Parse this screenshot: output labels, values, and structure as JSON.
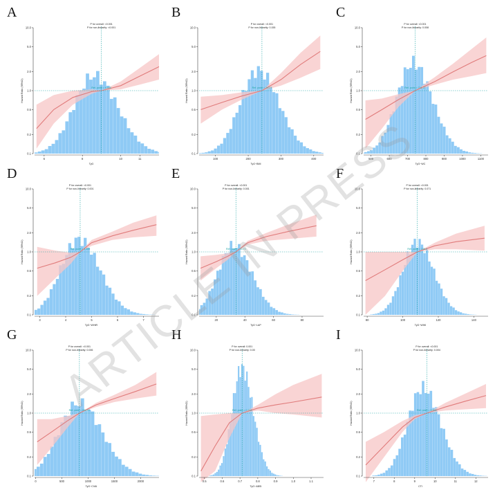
{
  "watermark": "ARTICLE IN PRESS",
  "colors": {
    "ci": "#f7c5c5",
    "line": "#e07b7b",
    "hist": "#8fcaf5",
    "ref": "#1aa3a3"
  },
  "chart_data": [
    {
      "type": "line",
      "letter": "A",
      "p_overall": "P for overall: <0.001",
      "p_nonlinear": "P for non-linearity: <0.001",
      "ref_label": "Ref. point = 8.990",
      "ylabel": "Hazard Ratio (95%CI)",
      "xlabel": "TyG",
      "x_ticks": [
        {
          "v": 6,
          "label": "6"
        },
        {
          "v": 8,
          "label": "8"
        },
        {
          "v": 10,
          "label": "10"
        },
        {
          "v": 11,
          "label": "11"
        }
      ],
      "y_ticks": [
        "10.0",
        "5.0",
        "2.0",
        "1.0",
        "0.5",
        "0.2",
        "0.1"
      ],
      "xlim": [
        5.5,
        12
      ],
      "ref_x": 8.99,
      "curve_x": [
        5.6,
        6.5,
        7.5,
        8.5,
        9.0,
        10,
        11,
        12
      ],
      "hr": [
        0.25,
        0.5,
        0.78,
        0.97,
        1.0,
        1.2,
        1.7,
        2.4
      ],
      "lower": [
        0.12,
        0.3,
        0.6,
        0.9,
        1.0,
        1.05,
        1.25,
        1.5
      ],
      "upper": [
        0.6,
        0.85,
        1.0,
        1.05,
        1.0,
        1.4,
        2.3,
        3.8
      ],
      "hist": {
        "center": 8.6,
        "sd": 1.05,
        "peak": 0.62
      }
    },
    {
      "type": "line",
      "letter": "B",
      "p_overall": "P for overall: <0.001",
      "p_nonlinear": "P for non-linearity: 0.155",
      "ref_label": "Ref. point = 241.9",
      "ylabel": "Hazard Ratio (95%CI)",
      "xlabel": "TyG−BMI",
      "x_ticks": [
        {
          "v": 100,
          "label": "100"
        },
        {
          "v": 200,
          "label": "200"
        },
        {
          "v": 300,
          "label": "300"
        },
        {
          "v": 400,
          "label": "400"
        }
      ],
      "y_ticks": [
        "10.0",
        "5.0",
        "2.0",
        "1.0",
        "0.5",
        "0.2",
        "0.1"
      ],
      "xlim": [
        50,
        430
      ],
      "ref_x": 241.9,
      "curve_x": [
        55,
        120,
        180,
        242,
        300,
        360,
        420
      ],
      "hr": [
        0.5,
        0.65,
        0.82,
        1.0,
        1.5,
        2.6,
        4.2
      ],
      "lower": [
        0.3,
        0.5,
        0.72,
        1.0,
        1.2,
        1.6,
        2.2
      ],
      "upper": [
        0.8,
        0.85,
        0.94,
        1.0,
        1.9,
        4.0,
        7.5
      ],
      "hist": {
        "center": 230,
        "sd": 55,
        "peak": 0.66
      }
    },
    {
      "type": "line",
      "letter": "C",
      "p_overall": "P for overall: <0.001",
      "p_nonlinear": "P for non-linearity: 0.008",
      "ref_label": "Ref. point = 741.27",
      "ylabel": "Hazard Ratio (95%CI)",
      "xlabel": "TyG−WC",
      "x_ticks": [
        {
          "v": 500,
          "label": "500"
        },
        {
          "v": 600,
          "label": "600"
        },
        {
          "v": 700,
          "label": "700"
        },
        {
          "v": 800,
          "label": "800"
        },
        {
          "v": 900,
          "label": "900"
        },
        {
          "v": 1000,
          "label": "1000"
        },
        {
          "v": 1100,
          "label": "1100"
        }
      ],
      "y_ticks": [
        "10.0",
        "5.0",
        "2.0",
        "1.0",
        "0.5",
        "0.2",
        "0.1"
      ],
      "xlim": [
        460,
        1140
      ],
      "ref_x": 741.27,
      "curve_x": [
        470,
        560,
        650,
        741,
        850,
        950,
        1050,
        1130
      ],
      "hr": [
        0.35,
        0.5,
        0.72,
        1.0,
        1.4,
        2.0,
        2.8,
        3.6
      ],
      "lower": [
        0.12,
        0.25,
        0.55,
        1.0,
        1.25,
        1.5,
        1.7,
        1.9
      ],
      "upper": [
        0.7,
        0.75,
        0.88,
        1.0,
        1.65,
        2.7,
        4.6,
        7.0
      ],
      "hist": {
        "center": 730,
        "sd": 90,
        "peak": 0.72
      }
    },
    {
      "type": "line",
      "letter": "D",
      "p_overall": "P for overall: <0.001",
      "p_nonlinear": "P for non-linearity: 0.001",
      "ref_label": "Ref. point = 4.559",
      "ylabel": "Hazard Ratio (95%CI)",
      "xlabel": "TyG−WHtR",
      "x_ticks": [
        {
          "v": 3,
          "label": "3"
        },
        {
          "v": 4,
          "label": "4"
        },
        {
          "v": 5,
          "label": "5"
        },
        {
          "v": 6,
          "label": "6"
        },
        {
          "v": 7,
          "label": "7"
        }
      ],
      "y_ticks": [
        "10.0",
        "5.0",
        "2.0",
        "1.0",
        "0.5",
        "0.2",
        "0.1"
      ],
      "xlim": [
        2.8,
        7.6
      ],
      "ref_x": 4.559,
      "curve_x": [
        2.9,
        3.6,
        4.2,
        4.56,
        5.0,
        5.8,
        6.6,
        7.5
      ],
      "hr": [
        0.55,
        0.67,
        0.82,
        1.0,
        1.4,
        1.8,
        2.2,
        2.7
      ],
      "lower": [
        0.2,
        0.38,
        0.65,
        1.0,
        1.25,
        1.55,
        1.7,
        1.8
      ],
      "upper": [
        1.2,
        1.05,
        0.97,
        1.0,
        1.55,
        2.1,
        2.9,
        3.8
      ],
      "hist": {
        "center": 4.5,
        "sd": 0.7,
        "peak": 0.6
      }
    },
    {
      "type": "line",
      "letter": "E",
      "p_overall": "P for overall: <0.001",
      "p_nonlinear": "P for non-linearity: 0.001",
      "ref_label": "Ref. point = 33.73",
      "ylabel": "Hazard Ratio (95%CI)",
      "xlabel": "TyG−LAP",
      "x_ticks": [
        {
          "v": 20,
          "label": "20"
        },
        {
          "v": 40,
          "label": "40"
        },
        {
          "v": 60,
          "label": "60"
        },
        {
          "v": 80,
          "label": "80"
        }
      ],
      "y_ticks": [
        "10.0",
        "5.0",
        "2.0",
        "1.0",
        "0.5",
        "0.2",
        "0.1"
      ],
      "xlim": [
        8,
        95
      ],
      "ref_x": 33.73,
      "curve_x": [
        9,
        20,
        28,
        33.7,
        42,
        55,
        70,
        90
      ],
      "hr": [
        0.55,
        0.7,
        0.85,
        1.0,
        1.4,
        1.75,
        2.1,
        2.6
      ],
      "lower": [
        0.35,
        0.55,
        0.75,
        1.0,
        1.3,
        1.5,
        1.6,
        1.75
      ],
      "upper": [
        0.85,
        0.9,
        0.95,
        1.0,
        1.5,
        2.0,
        2.7,
        3.9
      ],
      "hist": {
        "center": 32,
        "sd": 11,
        "peak": 0.55
      }
    },
    {
      "type": "line",
      "letter": "F",
      "p_overall": "P for overall: <0.001",
      "p_nonlinear": "P for non-linearity: 0.071",
      "ref_label": "Ref. point = 108.2",
      "ylabel": "Hazard Ratio (95%CI)",
      "xlabel": "TyG−WWI",
      "x_ticks": [
        {
          "v": 80,
          "label": "80"
        },
        {
          "v": 100,
          "label": "100"
        },
        {
          "v": 120,
          "label": "120"
        },
        {
          "v": 140,
          "label": "140"
        }
      ],
      "y_ticks": [
        "10.0",
        "5.0",
        "2.0",
        "1.0",
        "0.5",
        "0.2",
        "0.1"
      ],
      "xlim": [
        78,
        148
      ],
      "ref_x": 108.2,
      "curve_x": [
        79,
        90,
        100,
        108.2,
        118,
        130,
        146
      ],
      "hr": [
        0.35,
        0.52,
        0.75,
        1.0,
        1.25,
        1.45,
        1.65
      ],
      "lower": [
        0.1,
        0.2,
        0.5,
        1.0,
        1.1,
        1.1,
        1.05
      ],
      "upper": [
        1.0,
        1.0,
        1.0,
        1.0,
        1.4,
        1.95,
        2.6
      ],
      "hist": {
        "center": 108,
        "sd": 8,
        "peak": 0.58
      }
    },
    {
      "type": "line",
      "letter": "G",
      "p_overall": "P for overall: <0.001",
      "p_nonlinear": "P for non-linearity: 0.006",
      "ref_label": "Ref. point = 834.03",
      "ylabel": "Hazard Ratio (95%CI)",
      "xlabel": "TyG−CVAI",
      "x_ticks": [
        {
          "v": 0,
          "label": "0"
        },
        {
          "v": 500,
          "label": "500"
        },
        {
          "v": 1000,
          "label": "1000"
        },
        {
          "v": 1500,
          "label": "1500"
        },
        {
          "v": 2000,
          "label": "2000"
        }
      ],
      "y_ticks": [
        "10.0",
        "5.0",
        "2.0",
        "1.0",
        "0.5",
        "0.2",
        "0.1"
      ],
      "xlim": [
        -20,
        2350
      ],
      "ref_x": 834.03,
      "curve_x": [
        30,
        300,
        600,
        834,
        1150,
        1500,
        1900,
        2300
      ],
      "hr": [
        0.35,
        0.5,
        0.75,
        1.0,
        1.35,
        1.7,
        2.2,
        2.9
      ],
      "lower": [
        0.15,
        0.28,
        0.58,
        1.0,
        1.25,
        1.5,
        1.7,
        1.9
      ],
      "upper": [
        0.8,
        0.8,
        0.9,
        1.0,
        1.45,
        1.95,
        2.8,
        4.5
      ],
      "hist": {
        "center": 820,
        "sd": 380,
        "peak": 0.58
      }
    },
    {
      "type": "line",
      "letter": "H",
      "p_overall": "P for overall: 0.001",
      "p_nonlinear": "P for non-linearity: 0.00",
      "ref_label": "Ref. point = 0.712",
      "ylabel": "Hazard Ratio (95%CI)",
      "xlabel": "TyG−ABSI",
      "x_ticks": [
        {
          "v": 0.5,
          "label": "0.5"
        },
        {
          "v": 0.6,
          "label": "0.6"
        },
        {
          "v": 0.7,
          "label": "0.7"
        },
        {
          "v": 0.8,
          "label": "0.8"
        },
        {
          "v": 0.9,
          "label": "0.9"
        },
        {
          "v": 1.0,
          "label": "1.0"
        },
        {
          "v": 1.1,
          "label": "1.1"
        }
      ],
      "y_ticks": [
        "10.0",
        "5.0",
        "2.0",
        "1.0",
        "0.5",
        "0.2",
        "0.1"
      ],
      "xlim": [
        0.47,
        1.17
      ],
      "ref_x": 0.712,
      "curve_x": [
        0.48,
        0.56,
        0.64,
        0.712,
        0.8,
        0.9,
        1.0,
        1.16
      ],
      "hr": [
        0.12,
        0.3,
        0.7,
        1.0,
        1.2,
        1.35,
        1.5,
        1.8
      ],
      "lower": [
        0.08,
        0.12,
        0.4,
        1.0,
        1.1,
        1.0,
        0.95,
        0.85
      ],
      "upper": [
        0.9,
        0.95,
        1.0,
        1.0,
        1.35,
        2.0,
        2.8,
        4.2
      ],
      "hist": {
        "center": 0.71,
        "sd": 0.055,
        "peak": 0.86
      }
    },
    {
      "type": "line",
      "letter": "I",
      "p_overall": "P for overall: <0.001",
      "p_nonlinear": "P for non-linearity: 0.004",
      "ref_label": "Ref. point = 9.594",
      "ylabel": "Hazard Ratio (95%CI)",
      "xlabel": "CTI",
      "x_ticks": [
        {
          "v": 7,
          "label": "7"
        },
        {
          "v": 8,
          "label": "8"
        },
        {
          "v": 9,
          "label": "9"
        },
        {
          "v": 10,
          "label": "10"
        },
        {
          "v": 11,
          "label": "11"
        },
        {
          "v": 12,
          "label": "12"
        }
      ],
      "y_ticks": [
        "10.0",
        "5.0",
        "2.0",
        "1.0",
        "0.5",
        "0.2",
        "0.1"
      ],
      "xlim": [
        6.5,
        12.6
      ],
      "ref_x": 9.594,
      "curve_x": [
        6.6,
        7.5,
        8.4,
        9.0,
        9.6,
        10.5,
        11.5,
        12.5
      ],
      "hr": [
        0.15,
        0.3,
        0.6,
        0.85,
        1.0,
        1.25,
        1.55,
        1.9
      ],
      "lower": [
        0.08,
        0.2,
        0.5,
        0.8,
        1.0,
        1.1,
        1.15,
        1.2
      ],
      "upper": [
        0.35,
        0.5,
        0.75,
        0.92,
        1.0,
        1.45,
        2.05,
        2.9
      ],
      "hist": {
        "center": 9.4,
        "sd": 0.75,
        "peak": 0.7
      }
    }
  ]
}
